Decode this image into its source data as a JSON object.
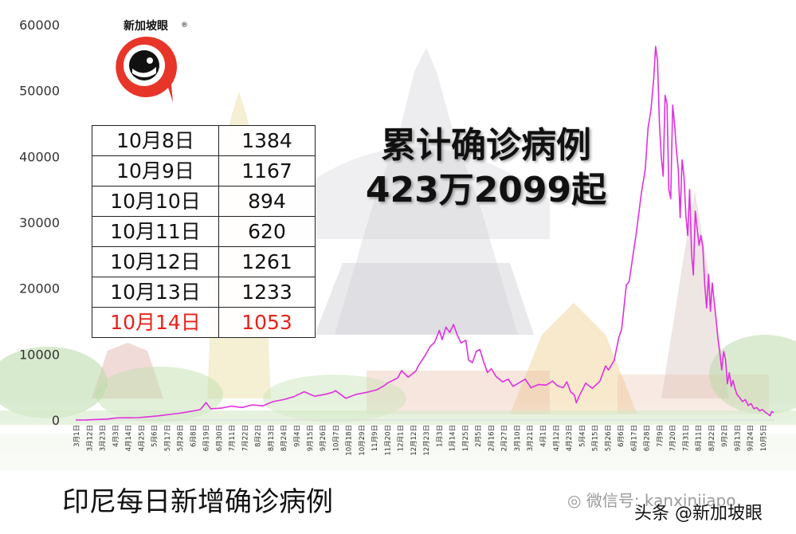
{
  "brand": {
    "name": "新加坡眼",
    "reg_mark": "®"
  },
  "headline": {
    "line1": "累计确诊病例",
    "line2": "423万2099起"
  },
  "daily_table": [
    {
      "date": "10月8日",
      "value": "1384"
    },
    {
      "date": "10月9日",
      "value": "1167"
    },
    {
      "date": "10月10日",
      "value": "894"
    },
    {
      "date": "10月11日",
      "value": "620"
    },
    {
      "date": "10月12日",
      "value": "1261"
    },
    {
      "date": "10月13日",
      "value": "1233"
    },
    {
      "date": "10月14日",
      "value": "1053",
      "highlight": true
    }
  ],
  "chart_title": "印尼每日新增确诊病例",
  "watermark": {
    "wechat": "微信号: kanxinjiapo",
    "toutiao": "头条 @新加坡眼"
  },
  "colors": {
    "line": "#e030e0",
    "highlight_red": "#e8211a",
    "logo_red": "#e8352a",
    "axis_text": "#333333"
  },
  "chart_data": {
    "type": "line",
    "title": "印尼每日新增确诊病例",
    "xlabel": "",
    "ylabel": "",
    "ylim": [
      0,
      60000
    ],
    "yticks": [
      0,
      10000,
      20000,
      30000,
      40000,
      50000,
      60000
    ],
    "grid": false,
    "legend": "none",
    "xticks": [
      "3月1日",
      "3月12日",
      "3月23日",
      "4月3日",
      "4月14日",
      "4月25日",
      "5月6日",
      "5月17日",
      "5月28日",
      "6月8日",
      "6月19日",
      "6月30日",
      "7月11日",
      "7月22日",
      "8月2日",
      "8月13日",
      "8月24日",
      "9月4日",
      "9月15日",
      "9月26日",
      "10月7日",
      "10月18日",
      "10月29日",
      "11月9日",
      "11月20日",
      "12月1日",
      "12月12日",
      "12月23日",
      "1月3日",
      "1月14日",
      "1月25日",
      "2月5日",
      "2月16日",
      "2月27日",
      "3月10日",
      "3月21日",
      "4月1日",
      "4月12日",
      "4月23日",
      "5月4日",
      "5月15日",
      "5月26日",
      "6月6日",
      "6月17日",
      "6月28日",
      "7月9日",
      "7月20日",
      "7月31日",
      "8月11日",
      "8月22日",
      "9月2日",
      "9月13日",
      "9月24日",
      "10月5日"
    ],
    "series": [
      {
        "color": "#e030e0",
        "points": [
          [
            0,
            0
          ],
          [
            11,
            10
          ],
          [
            22,
            90
          ],
          [
            33,
            150
          ],
          [
            44,
            330
          ],
          [
            55,
            340
          ],
          [
            66,
            360
          ],
          [
            77,
            500
          ],
          [
            88,
            640
          ],
          [
            99,
            850
          ],
          [
            110,
            1030
          ],
          [
            121,
            1300
          ],
          [
            132,
            1580
          ],
          [
            138,
            2650
          ],
          [
            143,
            1700
          ],
          [
            154,
            1800
          ],
          [
            165,
            2100
          ],
          [
            176,
            1900
          ],
          [
            187,
            2300
          ],
          [
            198,
            2150
          ],
          [
            209,
            2800
          ],
          [
            220,
            3100
          ],
          [
            231,
            3550
          ],
          [
            242,
            4300
          ],
          [
            253,
            3600
          ],
          [
            264,
            3900
          ],
          [
            272,
            4200
          ],
          [
            275,
            4450
          ],
          [
            286,
            3300
          ],
          [
            297,
            3900
          ],
          [
            308,
            4200
          ],
          [
            319,
            4600
          ],
          [
            327,
            5250
          ],
          [
            330,
            5600
          ],
          [
            341,
            6400
          ],
          [
            345,
            7500
          ],
          [
            352,
            6500
          ],
          [
            360,
            7400
          ],
          [
            363,
            8300
          ],
          [
            370,
            9800
          ],
          [
            375,
            11100
          ],
          [
            380,
            11800
          ],
          [
            385,
            13600
          ],
          [
            388,
            12200
          ],
          [
            392,
            14100
          ],
          [
            396,
            13300
          ],
          [
            400,
            14500
          ],
          [
            404,
            12900
          ],
          [
            408,
            11700
          ],
          [
            413,
            12100
          ],
          [
            416,
            9100
          ],
          [
            420,
            8700
          ],
          [
            424,
            10400
          ],
          [
            428,
            10700
          ],
          [
            432,
            8800
          ],
          [
            436,
            7200
          ],
          [
            440,
            7800
          ],
          [
            445,
            6600
          ],
          [
            452,
            5800
          ],
          [
            458,
            6200
          ],
          [
            463,
            5100
          ],
          [
            470,
            5700
          ],
          [
            476,
            6200
          ],
          [
            482,
            4900
          ],
          [
            490,
            5400
          ],
          [
            498,
            5300
          ],
          [
            505,
            5900
          ],
          [
            510,
            5200
          ],
          [
            516,
            4900
          ],
          [
            520,
            5800
          ],
          [
            524,
            4300
          ],
          [
            528,
            3800
          ],
          [
            530,
            2600
          ],
          [
            533,
            3600
          ],
          [
            540,
            5600
          ],
          [
            547,
            4800
          ],
          [
            555,
            5900
          ],
          [
            561,
            8200
          ],
          [
            564,
            7600
          ],
          [
            570,
            9000
          ],
          [
            575,
            12500
          ],
          [
            578,
            13800
          ],
          [
            583,
            20500
          ],
          [
            586,
            21000
          ],
          [
            590,
            25000
          ],
          [
            593,
            27800
          ],
          [
            596,
            31200
          ],
          [
            599,
            34500
          ],
          [
            603,
            38000
          ],
          [
            606,
            44300
          ],
          [
            609,
            47000
          ],
          [
            612,
            51900
          ],
          [
            614,
            56700
          ],
          [
            616,
            54500
          ],
          [
            618,
            45000
          ],
          [
            620,
            40000
          ],
          [
            622,
            37000
          ],
          [
            624,
            49300
          ],
          [
            626,
            48000
          ],
          [
            628,
            35000
          ],
          [
            630,
            33600
          ],
          [
            632,
            47800
          ],
          [
            634,
            45000
          ],
          [
            636,
            41000
          ],
          [
            638,
            38000
          ],
          [
            640,
            30700
          ],
          [
            642,
            39500
          ],
          [
            644,
            37000
          ],
          [
            646,
            31000
          ],
          [
            648,
            28000
          ],
          [
            650,
            35000
          ],
          [
            652,
            25300
          ],
          [
            654,
            22000
          ],
          [
            656,
            31700
          ],
          [
            658,
            29000
          ],
          [
            660,
            26500
          ],
          [
            662,
            28000
          ],
          [
            664,
            26200
          ],
          [
            666,
            20500
          ],
          [
            668,
            17000
          ],
          [
            670,
            22100
          ],
          [
            672,
            16500
          ],
          [
            674,
            20800
          ],
          [
            676,
            18000
          ],
          [
            678,
            15300
          ],
          [
            680,
            12300
          ],
          [
            682,
            10200
          ],
          [
            684,
            7600
          ],
          [
            686,
            10400
          ],
          [
            688,
            9200
          ],
          [
            690,
            5500
          ],
          [
            692,
            7200
          ],
          [
            694,
            5100
          ],
          [
            696,
            6000
          ],
          [
            698,
            4800
          ],
          [
            700,
            3900
          ],
          [
            703,
            3400
          ],
          [
            706,
            2800
          ],
          [
            709,
            3100
          ],
          [
            712,
            2200
          ],
          [
            715,
            2500
          ],
          [
            718,
            1700
          ],
          [
            721,
            1900
          ],
          [
            724,
            1400
          ],
          [
            727,
            1600
          ],
          [
            730,
            1200
          ],
          [
            733,
            900
          ],
          [
            735,
            650
          ],
          [
            737,
            1300
          ],
          [
            739,
            1100
          ]
        ]
      }
    ]
  }
}
